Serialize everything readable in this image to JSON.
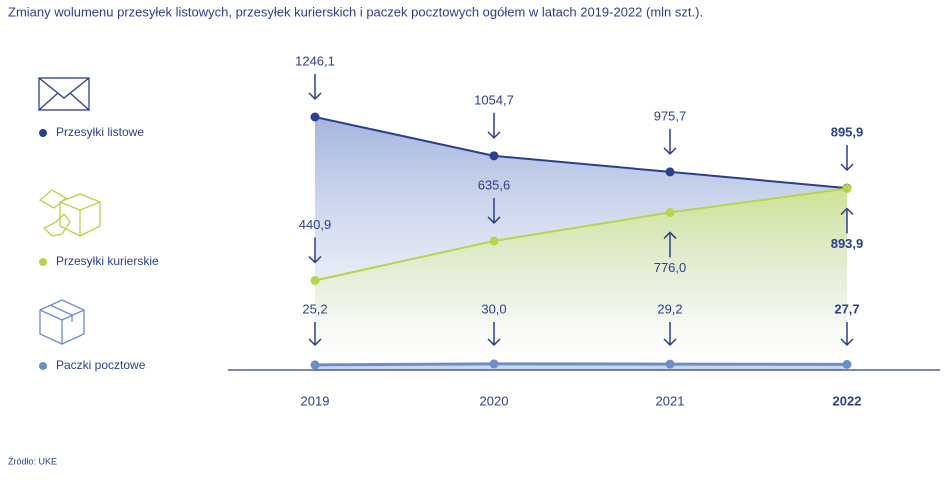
{
  "chart_data": {
    "type": "line",
    "title": "Zmiany wolumenu przesyłek listowych, przesyłek kurierskich i paczek pocztowych ogółem w latach 2019-2022 (mln szt.).",
    "source": "Źródło: UKE",
    "categories": [
      "2019",
      "2020",
      "2021",
      "2022"
    ],
    "series": [
      {
        "name": "Przesyłki listowe",
        "color": "#2b3f8f",
        "values": [
          1246.1,
          1054.7,
          975.7,
          895.9
        ],
        "value_labels": [
          "1246,1",
          "1054,7",
          "975,7",
          "895,9"
        ]
      },
      {
        "name": "Przesyłki kurierskie",
        "color": "#b5d64a",
        "values": [
          440.9,
          635.6,
          776.0,
          893.9
        ],
        "value_labels": [
          "440,9",
          "635,6",
          "776,0",
          "893,9"
        ]
      },
      {
        "name": "Paczki pocztowe",
        "color": "#6a8fc8",
        "values": [
          25.2,
          30.0,
          29.2,
          27.7
        ],
        "value_labels": [
          "25,2",
          "30,0",
          "29,2",
          "27,7"
        ]
      }
    ]
  }
}
